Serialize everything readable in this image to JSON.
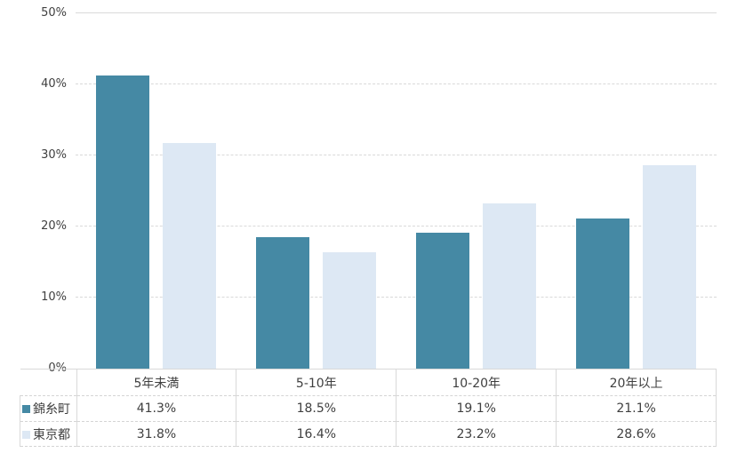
{
  "chart_data": {
    "type": "bar",
    "categories": [
      "5年未満",
      "5-10年",
      "10-20年",
      "20年以上"
    ],
    "series": [
      {
        "name": "錦糸町",
        "color": "#4589A4",
        "values": [
          41.3,
          18.5,
          19.1,
          21.1
        ]
      },
      {
        "name": "東京都",
        "color": "#DDE8F4",
        "values": [
          31.8,
          16.4,
          23.2,
          28.6
        ]
      }
    ],
    "title": "",
    "xlabel": "",
    "ylabel": "",
    "ylim": [
      0,
      50
    ],
    "ytick_step": 10,
    "yticks": [
      "0%",
      "10%",
      "20%",
      "30%",
      "40%",
      "50%"
    ],
    "value_suffix": "%",
    "grid": true,
    "gridline_color": "#d9d9d9",
    "legend_position": "data-table-left",
    "table_values": {
      "錦糸町": [
        "41.3%",
        "18.5%",
        "19.1%",
        "21.1%"
      ],
      "東京都": [
        "31.8%",
        "16.4%",
        "23.2%",
        "28.6%"
      ]
    }
  },
  "colors": {
    "background": "#ffffff",
    "axis_text": "#404040",
    "table_text": "#3f3f3f",
    "table_border": "#d9d9d9"
  }
}
